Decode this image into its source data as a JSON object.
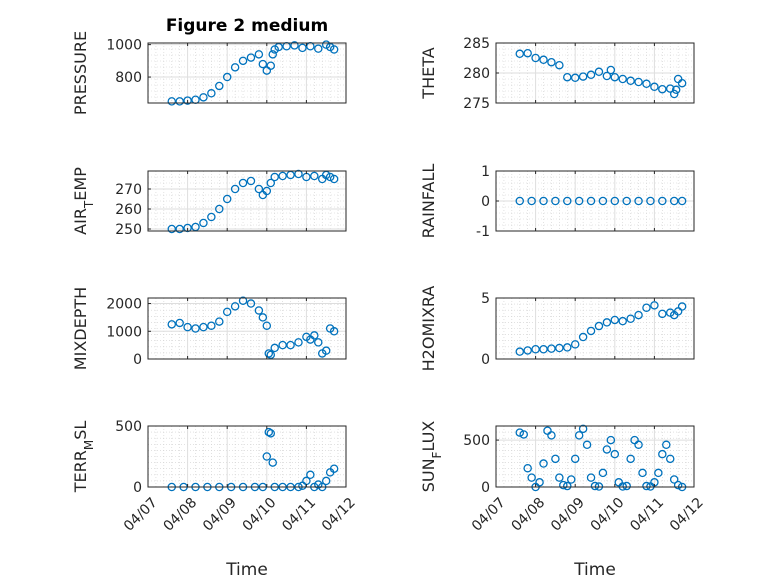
{
  "title": "Figure 2 medium",
  "x_ticks": [
    "04/07",
    "04/08",
    "04/09",
    "04/10",
    "04/11",
    "04/12"
  ],
  "marker_color": "#0072BD",
  "chart_data": [
    {
      "type": "scatter",
      "ylabel": "PRESSURE",
      "xlabel": "",
      "ylim": [
        640,
        1010
      ],
      "yticks": [
        "800",
        "1000"
      ],
      "ytick_values": [
        800,
        1000
      ],
      "grid": true,
      "x": [
        0.6,
        0.8,
        1.0,
        1.2,
        1.4,
        1.6,
        1.8,
        2.0,
        2.2,
        2.4,
        2.6,
        2.8,
        2.9,
        3.0,
        3.1,
        3.15,
        3.2,
        3.3,
        3.5,
        3.7,
        3.9,
        4.1,
        4.3,
        4.5,
        4.6,
        4.7
      ],
      "values": [
        650,
        650,
        655,
        660,
        675,
        700,
        745,
        800,
        860,
        900,
        920,
        940,
        880,
        840,
        870,
        940,
        970,
        985,
        990,
        995,
        980,
        990,
        975,
        1000,
        985,
        970
      ]
    },
    {
      "type": "scatter",
      "ylabel": "THETA",
      "xlabel": "",
      "ylim": [
        275,
        285
      ],
      "yticks": [
        "275",
        "280",
        "285"
      ],
      "ytick_values": [
        275,
        280,
        285
      ],
      "grid": true,
      "x": [
        0.6,
        0.8,
        1.0,
        1.2,
        1.4,
        1.6,
        1.8,
        2.0,
        2.2,
        2.4,
        2.6,
        2.8,
        2.9,
        3.0,
        3.2,
        3.4,
        3.6,
        3.8,
        4.0,
        4.2,
        4.4,
        4.5,
        4.55,
        4.6,
        4.7
      ],
      "values": [
        283.2,
        283.3,
        282.5,
        282.2,
        281.8,
        281.3,
        279.3,
        279.2,
        279.4,
        279.7,
        280.2,
        279.5,
        280.5,
        279.3,
        279.0,
        278.7,
        278.5,
        278.2,
        277.7,
        277.3,
        277.4,
        276.5,
        277.2,
        279.0,
        278.3
      ]
    },
    {
      "type": "scatter",
      "ylabel": "AIR_TEMP",
      "xlabel": "",
      "ylim": [
        249,
        279
      ],
      "yticks": [
        "250",
        "260",
        "270"
      ],
      "ytick_values": [
        250,
        260,
        270
      ],
      "grid": true,
      "x": [
        0.6,
        0.8,
        1.0,
        1.2,
        1.4,
        1.6,
        1.8,
        2.0,
        2.2,
        2.4,
        2.6,
        2.8,
        2.9,
        3.0,
        3.1,
        3.2,
        3.4,
        3.6,
        3.8,
        4.0,
        4.2,
        4.4,
        4.5,
        4.6,
        4.7
      ],
      "values": [
        250,
        250,
        250.5,
        251,
        253,
        256,
        260,
        265,
        270,
        273,
        274,
        270,
        267,
        269,
        273,
        276,
        276.5,
        277,
        277.5,
        276,
        276.5,
        275,
        277,
        276,
        275
      ]
    },
    {
      "type": "scatter",
      "ylabel": "RAINFALL",
      "xlabel": "",
      "ylim": [
        -1,
        1
      ],
      "yticks": [
        "-1",
        "0",
        "1"
      ],
      "ytick_values": [
        -1,
        0,
        1
      ],
      "grid": true,
      "x": [
        0.6,
        0.9,
        1.2,
        1.5,
        1.8,
        2.1,
        2.4,
        2.7,
        3.0,
        3.3,
        3.6,
        3.9,
        4.2,
        4.5,
        4.7
      ],
      "values": [
        0,
        0,
        0,
        0,
        0,
        0,
        0,
        0,
        0,
        0,
        0,
        0,
        0,
        0,
        0
      ]
    },
    {
      "type": "scatter",
      "ylabel": "MIXDEPTH",
      "xlabel": "",
      "ylim": [
        0,
        2200
      ],
      "yticks": [
        "0",
        "1000",
        "2000"
      ],
      "ytick_values": [
        0,
        1000,
        2000
      ],
      "grid": true,
      "x": [
        0.6,
        0.8,
        1.0,
        1.2,
        1.4,
        1.6,
        1.8,
        2.0,
        2.2,
        2.4,
        2.6,
        2.8,
        2.9,
        3.0,
        3.05,
        3.1,
        3.2,
        3.4,
        3.6,
        3.8,
        4.0,
        4.1,
        4.2,
        4.3,
        4.4,
        4.5,
        4.6,
        4.7
      ],
      "values": [
        1250,
        1300,
        1150,
        1100,
        1150,
        1200,
        1350,
        1700,
        1900,
        2100,
        2000,
        1750,
        1500,
        1200,
        200,
        150,
        400,
        500,
        500,
        600,
        800,
        700,
        850,
        600,
        200,
        300,
        1100,
        1000
      ]
    },
    {
      "type": "scatter",
      "ylabel": "H2OMIXRA",
      "xlabel": "",
      "ylim": [
        0,
        5
      ],
      "yticks": [
        "0",
        "5"
      ],
      "ytick_values": [
        0,
        5
      ],
      "grid": true,
      "x": [
        0.6,
        0.8,
        1.0,
        1.2,
        1.4,
        1.6,
        1.8,
        2.0,
        2.2,
        2.4,
        2.6,
        2.8,
        3.0,
        3.2,
        3.4,
        3.6,
        3.8,
        4.0,
        4.2,
        4.4,
        4.5,
        4.6,
        4.7
      ],
      "values": [
        0.6,
        0.7,
        0.8,
        0.8,
        0.85,
        0.9,
        0.95,
        1.2,
        1.8,
        2.3,
        2.7,
        3.0,
        3.2,
        3.1,
        3.3,
        3.6,
        4.2,
        4.4,
        3.7,
        3.8,
        3.6,
        3.9,
        4.3
      ]
    },
    {
      "type": "scatter",
      "ylabel": "TERR_MSL",
      "xlabel": "Time",
      "ylim": [
        0,
        500
      ],
      "yticks": [
        "0",
        "500"
      ],
      "ytick_values": [
        0,
        500
      ],
      "grid": true,
      "x": [
        0.6,
        0.9,
        1.2,
        1.5,
        1.8,
        2.1,
        2.4,
        2.7,
        2.9,
        3.0,
        3.05,
        3.1,
        3.15,
        3.2,
        3.4,
        3.6,
        3.8,
        3.9,
        4.0,
        4.1,
        4.2,
        4.3,
        4.4,
        4.5,
        4.6,
        4.7
      ],
      "values": [
        0,
        0,
        0,
        0,
        0,
        0,
        0,
        0,
        0,
        250,
        450,
        440,
        200,
        0,
        0,
        0,
        0,
        10,
        50,
        100,
        0,
        20,
        0,
        50,
        120,
        150
      ]
    },
    {
      "type": "scatter",
      "ylabel": "SUN_FLUX",
      "xlabel": "Time",
      "ylim": [
        0,
        650
      ],
      "yticks": [
        "0",
        "500"
      ],
      "ytick_values": [
        0,
        500
      ],
      "grid": true,
      "x": [
        0.6,
        0.7,
        0.8,
        0.9,
        1.0,
        1.1,
        1.2,
        1.3,
        1.4,
        1.5,
        1.6,
        1.7,
        1.8,
        1.9,
        2.0,
        2.1,
        2.2,
        2.3,
        2.4,
        2.5,
        2.6,
        2.7,
        2.8,
        2.9,
        3.0,
        3.1,
        3.2,
        3.3,
        3.4,
        3.5,
        3.6,
        3.7,
        3.8,
        3.9,
        4.0,
        4.1,
        4.2,
        4.3,
        4.4,
        4.5,
        4.6,
        4.7
      ],
      "values": [
        580,
        560,
        200,
        100,
        0,
        50,
        250,
        600,
        550,
        300,
        100,
        20,
        10,
        80,
        300,
        550,
        620,
        450,
        100,
        10,
        5,
        150,
        400,
        500,
        350,
        50,
        5,
        10,
        300,
        500,
        450,
        150,
        10,
        5,
        50,
        150,
        350,
        450,
        300,
        80,
        20,
        0
      ]
    }
  ]
}
